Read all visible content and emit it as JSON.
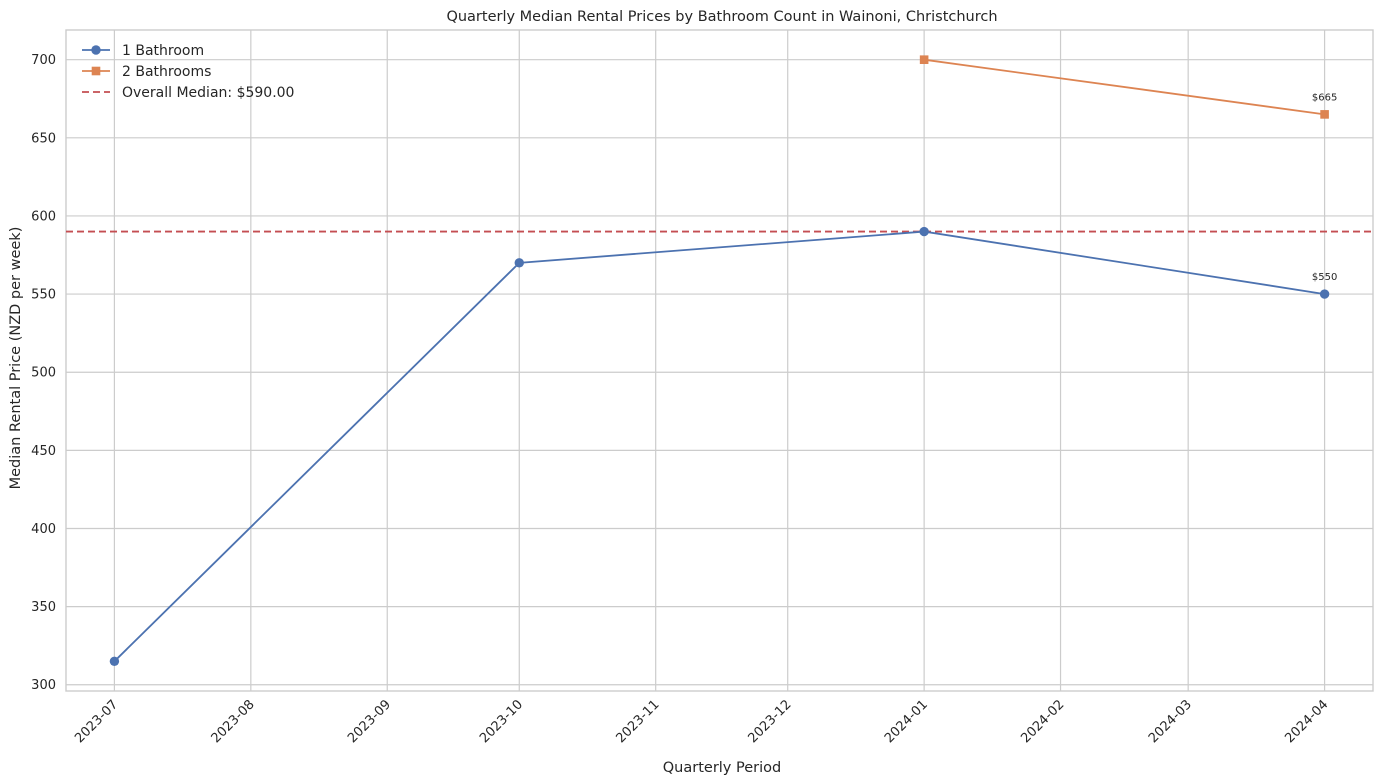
{
  "chart_data": {
    "type": "line",
    "title": "Quarterly Median Rental Prices by Bathroom Count in Wainoni, Christchurch",
    "xlabel": "Quarterly Period",
    "ylabel": "Median Rental Price (NZD per week)",
    "x_ticks": [
      "2023-07",
      "2023-08",
      "2023-09",
      "2023-10",
      "2023-11",
      "2023-12",
      "2024-01",
      "2024-02",
      "2024-03",
      "2024-04"
    ],
    "y_ticks": [
      300,
      350,
      400,
      450,
      500,
      550,
      600,
      650,
      700
    ],
    "xlim": [
      "2023-06-20",
      "2024-04-12"
    ],
    "ylim": [
      296,
      719
    ],
    "grid": true,
    "legend_position": "top-left",
    "series": [
      {
        "name": "1 Bathroom",
        "color": "#4c72b0",
        "marker": "circle",
        "x": [
          "2023-07-01",
          "2023-10-01",
          "2024-01-01",
          "2024-04-01"
        ],
        "y": [
          315,
          570,
          590,
          550
        ],
        "last_point_label": "$550"
      },
      {
        "name": "2 Bathrooms",
        "color": "#dd8452",
        "marker": "square",
        "x": [
          "2024-01-01",
          "2024-04-01"
        ],
        "y": [
          700,
          665
        ],
        "last_point_label": "$665"
      }
    ],
    "reference_line": {
      "label": "Overall Median: $590.00",
      "y": 590,
      "color": "#c44e52",
      "style": "dashed"
    }
  }
}
